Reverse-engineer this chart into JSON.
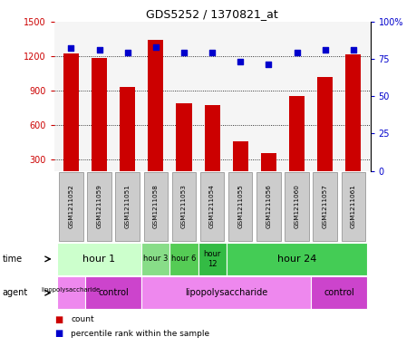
{
  "title": "GDS5252 / 1370821_at",
  "samples": [
    "GSM1211052",
    "GSM1211059",
    "GSM1211051",
    "GSM1211058",
    "GSM1211053",
    "GSM1211054",
    "GSM1211055",
    "GSM1211056",
    "GSM1211060",
    "GSM1211057",
    "GSM1211061"
  ],
  "counts": [
    1220,
    1185,
    930,
    1340,
    790,
    770,
    460,
    355,
    850,
    1020,
    1210
  ],
  "percentiles": [
    82,
    81,
    79,
    83,
    79,
    79,
    73,
    71,
    79,
    81,
    81
  ],
  "ylim_left": [
    200,
    1500
  ],
  "ylim_right": [
    0,
    100
  ],
  "left_yticks": [
    300,
    600,
    900,
    1200,
    1500
  ],
  "right_yticks": [
    0,
    25,
    50,
    75,
    100
  ],
  "bar_color": "#cc0000",
  "dot_color": "#0000cc",
  "sample_box_color": "#cccccc",
  "sample_box_edge": "#888888",
  "time_segments": [
    {
      "label": "hour 1",
      "start": 0,
      "end": 3,
      "color": "#ccffcc",
      "fontsize": 8
    },
    {
      "label": "hour 3",
      "start": 3,
      "end": 4,
      "color": "#88dd88",
      "fontsize": 6
    },
    {
      "label": "hour 6",
      "start": 4,
      "end": 5,
      "color": "#55cc55",
      "fontsize": 6
    },
    {
      "label": "hour\n12",
      "start": 5,
      "end": 6,
      "color": "#33bb44",
      "fontsize": 6
    },
    {
      "label": "hour 24",
      "start": 6,
      "end": 11,
      "color": "#44cc55",
      "fontsize": 8
    }
  ],
  "agent_segments": [
    {
      "label": "lipopolysaccharide\n ",
      "start": 0,
      "end": 1,
      "color": "#ee88ee",
      "fontsize": 5
    },
    {
      "label": "control",
      "start": 1,
      "end": 3,
      "color": "#cc44cc",
      "fontsize": 7
    },
    {
      "label": "lipopolysaccharide",
      "start": 3,
      "end": 9,
      "color": "#ee88ee",
      "fontsize": 7
    },
    {
      "label": "control",
      "start": 9,
      "end": 11,
      "color": "#cc44cc",
      "fontsize": 7
    }
  ],
  "legend_count_color": "#cc0000",
  "legend_dot_color": "#0000cc",
  "chart_bg": "#f5f5f5"
}
